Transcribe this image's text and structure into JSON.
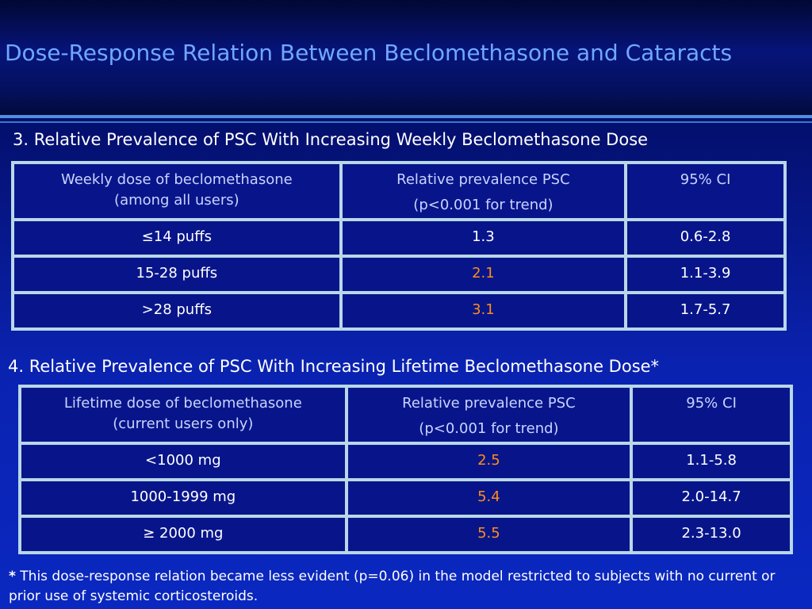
{
  "title": "Dose-Response Relation Between Beclomethasone and Cataracts",
  "section3": {
    "heading": "3. Relative Prevalence of PSC With Increasing Weekly Beclomethasone Dose",
    "header": {
      "col1_line1": "Weekly dose of beclomethasone",
      "col1_line2": "(among all users)",
      "col2_line1": "Relative prevalence PSC",
      "col2_line2": "(p<0.001 for trend)",
      "col3": "95% CI"
    },
    "rows": [
      {
        "dose": "≤14 puffs",
        "prevalence": "1.3",
        "ci": "0.6-2.8",
        "highlight": false
      },
      {
        "dose": "15-28 puffs",
        "prevalence": "2.1",
        "ci": "1.1-3.9",
        "highlight": true
      },
      {
        "dose": ">28 puffs",
        "prevalence": "3.1",
        "ci": "1.7-5.7",
        "highlight": true
      }
    ]
  },
  "section4": {
    "heading": "4. Relative Prevalence of PSC With Increasing Lifetime Beclomethasone Dose*",
    "header": {
      "col1_line1": "Lifetime dose of beclomethasone",
      "col1_line2": "(current users only)",
      "col2_line1": "Relative prevalence PSC",
      "col2_line2": "(p<0.001 for trend)",
      "col3": "95% CI"
    },
    "rows": [
      {
        "dose": "<1000 mg",
        "prevalence": "2.5",
        "ci": "1.1-5.8",
        "highlight": true
      },
      {
        "dose": "1000-1999 mg",
        "prevalence": "5.4",
        "ci": "2.0-14.7",
        "highlight": true
      },
      {
        "dose": "≥ 2000 mg",
        "prevalence": "5.5",
        "ci": "2.3-13.0",
        "highlight": true
      }
    ]
  },
  "footnote": {
    "marker": "*",
    "text": " This dose-response relation became less evident (p=0.06) in the model restricted to subjects with no current or prior use of systemic corticosteroids."
  },
  "colors": {
    "highlight": "#ff8c1a",
    "title": "#6fa8ff",
    "table_border": "#b8d7e8",
    "background": "#0a22b0"
  }
}
